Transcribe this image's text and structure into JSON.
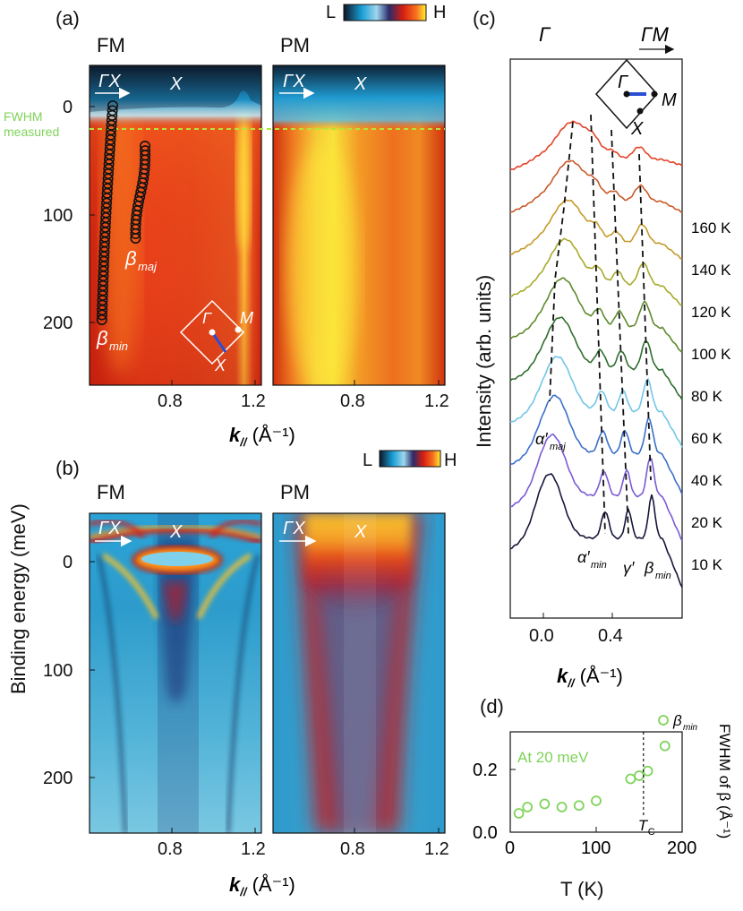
{
  "colors": {
    "map_low": "#0a1a2a",
    "map_mid": "#1fa6d6",
    "map_red": "#d41e10",
    "map_high": "#ffef2a",
    "fwhm_green": "#7fd35a",
    "fwhm_line": "#b5e33a"
  },
  "panel_a": {
    "label": "(a)",
    "colorbar_low": "L",
    "colorbar_high": "H",
    "fm_title": "FM",
    "pm_title": "PM",
    "gx_label": "ΓX",
    "x_label": "X",
    "fwhm_note_line1": "FWHM",
    "fwhm_note_line2": "measured",
    "beta_maj": "β",
    "beta_maj_sub": "maj",
    "beta_min": "β",
    "beta_min_sub": "min",
    "bz_gamma": "Γ",
    "bz_m": "M",
    "bz_x": "X",
    "y_ticks": [
      "0",
      "100",
      "200"
    ],
    "x_ticks": [
      "0.8",
      "1.2"
    ],
    "xlabel_k": "k",
    "xlabel_sub": "//",
    "xlabel_unit": " (Å⁻¹)"
  },
  "panel_b": {
    "label": "(b)",
    "colorbar_low": "L",
    "colorbar_high": "H",
    "fm_title": "FM",
    "pm_title": "PM",
    "gx_label": "ΓX",
    "x_label": "X",
    "y_ticks": [
      "0",
      "100",
      "200"
    ],
    "x_ticks": [
      "0.8",
      "1.2"
    ],
    "xlabel_k": "k",
    "xlabel_sub": "//",
    "xlabel_unit": " (Å⁻¹)"
  },
  "ylabel": "Binding energy (meV)",
  "panel_c": {
    "label": "(c)",
    "gamma": "Γ",
    "gm": "ΓM",
    "bz_gamma": "Γ",
    "bz_m": "M",
    "bz_x": "X",
    "ylabel": "Intensity (arb. units)",
    "x_ticks": [
      "0.0",
      "0.4"
    ],
    "xlabel_k": "k",
    "xlabel_sub": "//",
    "xlabel_unit": " (Å⁻¹)",
    "temps": [
      "160 K",
      "140 K",
      "120 K",
      "100 K",
      "80 K",
      "60 K",
      "40 K",
      "20 K",
      "10 K"
    ],
    "alpha_maj": "α′",
    "alpha_maj_sub": "maj",
    "alpha_min": "α′",
    "alpha_min_sub": "min",
    "gamma_prime": "γ′",
    "beta_min": "β",
    "beta_min_sub": "min"
  },
  "curve_colors": [
    "#e4442a",
    "#c85a2a",
    "#c69a2a",
    "#a8aa2a",
    "#5f8a2e",
    "#2f6e2e",
    "#73c6e6",
    "#3b6fc9",
    "#7b5ad6",
    "#16163a"
  ],
  "chart_data": {
    "type": "scatter",
    "title": "(d)",
    "annotation": "At 20 meV",
    "xlabel": "T (K)",
    "ylabel": "FWHM of β (Å⁻¹)",
    "xlim": [
      0,
      200
    ],
    "ylim": [
      0,
      0.32
    ],
    "x_ticks": [
      "0",
      "100",
      "200"
    ],
    "y_ticks": [
      "0.0",
      "0.2"
    ],
    "legend": "β",
    "legend_sub": "min",
    "tc_label": "T",
    "tc_sub": "C",
    "tc_value": 155,
    "series": [
      {
        "name": "β_min",
        "x": [
          10,
          20,
          40,
          60,
          80,
          100,
          140,
          150,
          160,
          180
        ],
        "y": [
          0.06,
          0.08,
          0.09,
          0.08,
          0.085,
          0.1,
          0.17,
          0.18,
          0.195,
          0.275
        ]
      }
    ]
  }
}
